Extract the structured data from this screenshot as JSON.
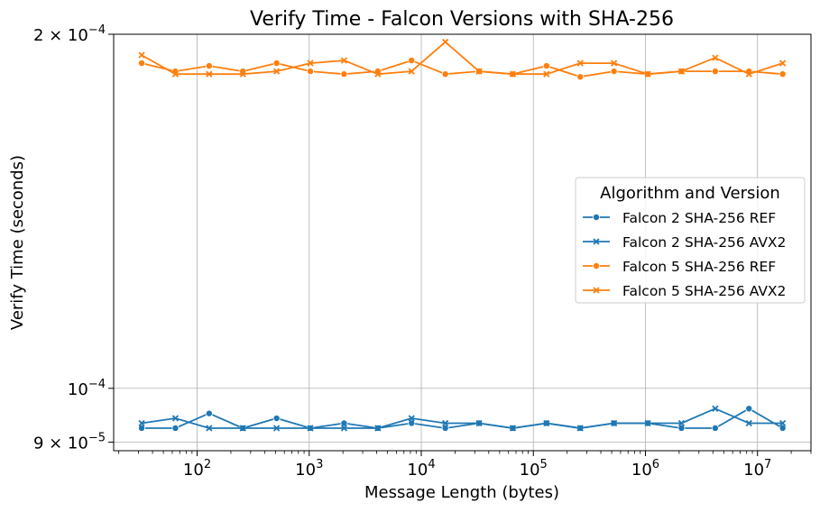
{
  "chart_data": {
    "type": "line",
    "title": "Verify Time - Falcon Versions with SHA-256",
    "xlabel": "Message Length (bytes)",
    "ylabel": "Verify Time (seconds)",
    "xscale": "log",
    "yscale": "log",
    "xlim": [
      18,
      30000000
    ],
    "ylim": [
      8.85e-05,
      0.0002
    ],
    "grid": true,
    "legend": {
      "title": "Algorithm and Version",
      "placement": "center-right"
    },
    "x_ticks": [
      {
        "value": 100,
        "base": "10",
        "exp": "2"
      },
      {
        "value": 1000,
        "base": "10",
        "exp": "3"
      },
      {
        "value": 10000,
        "base": "10",
        "exp": "4"
      },
      {
        "value": 100000,
        "base": "10",
        "exp": "5"
      },
      {
        "value": 1000000,
        "base": "10",
        "exp": "6"
      },
      {
        "value": 10000000,
        "base": "10",
        "exp": "7"
      }
    ],
    "y_ticks": [
      {
        "value": 0.0002,
        "mant": "2",
        "times": "×",
        "base": "10",
        "exp": "−4"
      },
      {
        "value": 0.0001,
        "mant": "",
        "times": "",
        "base": "10",
        "exp": "−4"
      },
      {
        "value": 9e-05,
        "mant": "9",
        "times": "×",
        "base": "10",
        "exp": "−5"
      }
    ],
    "x": [
      32,
      64,
      128,
      256,
      512,
      1024,
      2048,
      4096,
      8192,
      16384,
      32768,
      65536,
      131072,
      262144,
      524288,
      1048576,
      2097152,
      4194304,
      8388608,
      16777216
    ],
    "series": [
      {
        "name": "Falcon 2 SHA-256 REF",
        "color": "#1f77b4",
        "marker": "circle",
        "values": [
          9.25e-05,
          9.25e-05,
          9.52e-05,
          9.25e-05,
          9.43e-05,
          9.25e-05,
          9.34e-05,
          9.25e-05,
          9.34e-05,
          9.25e-05,
          9.34e-05,
          9.25e-05,
          9.34e-05,
          9.25e-05,
          9.34e-05,
          9.34e-05,
          9.25e-05,
          9.25e-05,
          9.61e-05,
          9.25e-05
        ]
      },
      {
        "name": "Falcon 2 SHA-256 AVX2",
        "color": "#1f77b4",
        "marker": "x",
        "values": [
          9.34e-05,
          9.43e-05,
          9.25e-05,
          9.25e-05,
          9.25e-05,
          9.25e-05,
          9.25e-05,
          9.25e-05,
          9.43e-05,
          9.34e-05,
          9.34e-05,
          9.25e-05,
          9.34e-05,
          9.25e-05,
          9.34e-05,
          9.34e-05,
          9.34e-05,
          9.61e-05,
          9.34e-05,
          9.34e-05
        ]
      },
      {
        "name": "Falcon 5 SHA-256 REF",
        "color": "#ff7f0e",
        "marker": "circle",
        "values": [
          0.000189,
          0.000186,
          0.000188,
          0.000186,
          0.000189,
          0.000186,
          0.000185,
          0.000186,
          0.00019,
          0.000185,
          0.000186,
          0.000185,
          0.000188,
          0.000184,
          0.000186,
          0.000185,
          0.000186,
          0.000186,
          0.000186,
          0.000185
        ]
      },
      {
        "name": "Falcon 5 SHA-256 AVX2",
        "color": "#ff7f0e",
        "marker": "x",
        "values": [
          0.000192,
          0.000185,
          0.000185,
          0.000185,
          0.000186,
          0.000189,
          0.00019,
          0.000185,
          0.000186,
          0.000197,
          0.000186,
          0.000185,
          0.000185,
          0.000189,
          0.000189,
          0.000185,
          0.000186,
          0.000191,
          0.000185,
          0.000189
        ]
      }
    ]
  }
}
